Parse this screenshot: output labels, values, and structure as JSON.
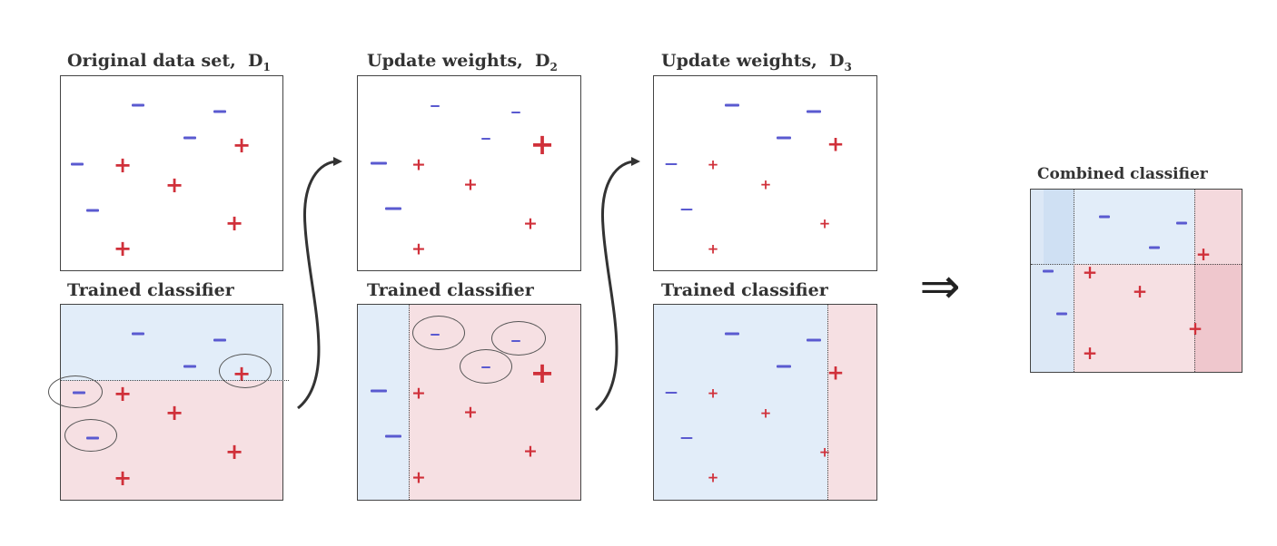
{
  "titles": {
    "original": "Original data set,",
    "original_sub": "1",
    "update2": "Update weights,",
    "update2_sub": "2",
    "update3": "Update weights,",
    "update3_sub": "3",
    "trained1": "Trained classifier",
    "trained2": "Trained classifier",
    "trained3": "Trained classifier",
    "combined": "Combined classifier",
    "d_letter": "D"
  },
  "implies_symbol": "⇒",
  "colors": {
    "plus": "#d0303a",
    "minus": "#5a5ad0",
    "negative_region": "#e2edf9",
    "positive_region": "#f6e0e3"
  },
  "icons": [
    "plus-sign-icon",
    "minus-sign-icon",
    "curved-arrow-icon",
    "double-arrow-icon",
    "misclassified-circle-icon"
  ]
}
